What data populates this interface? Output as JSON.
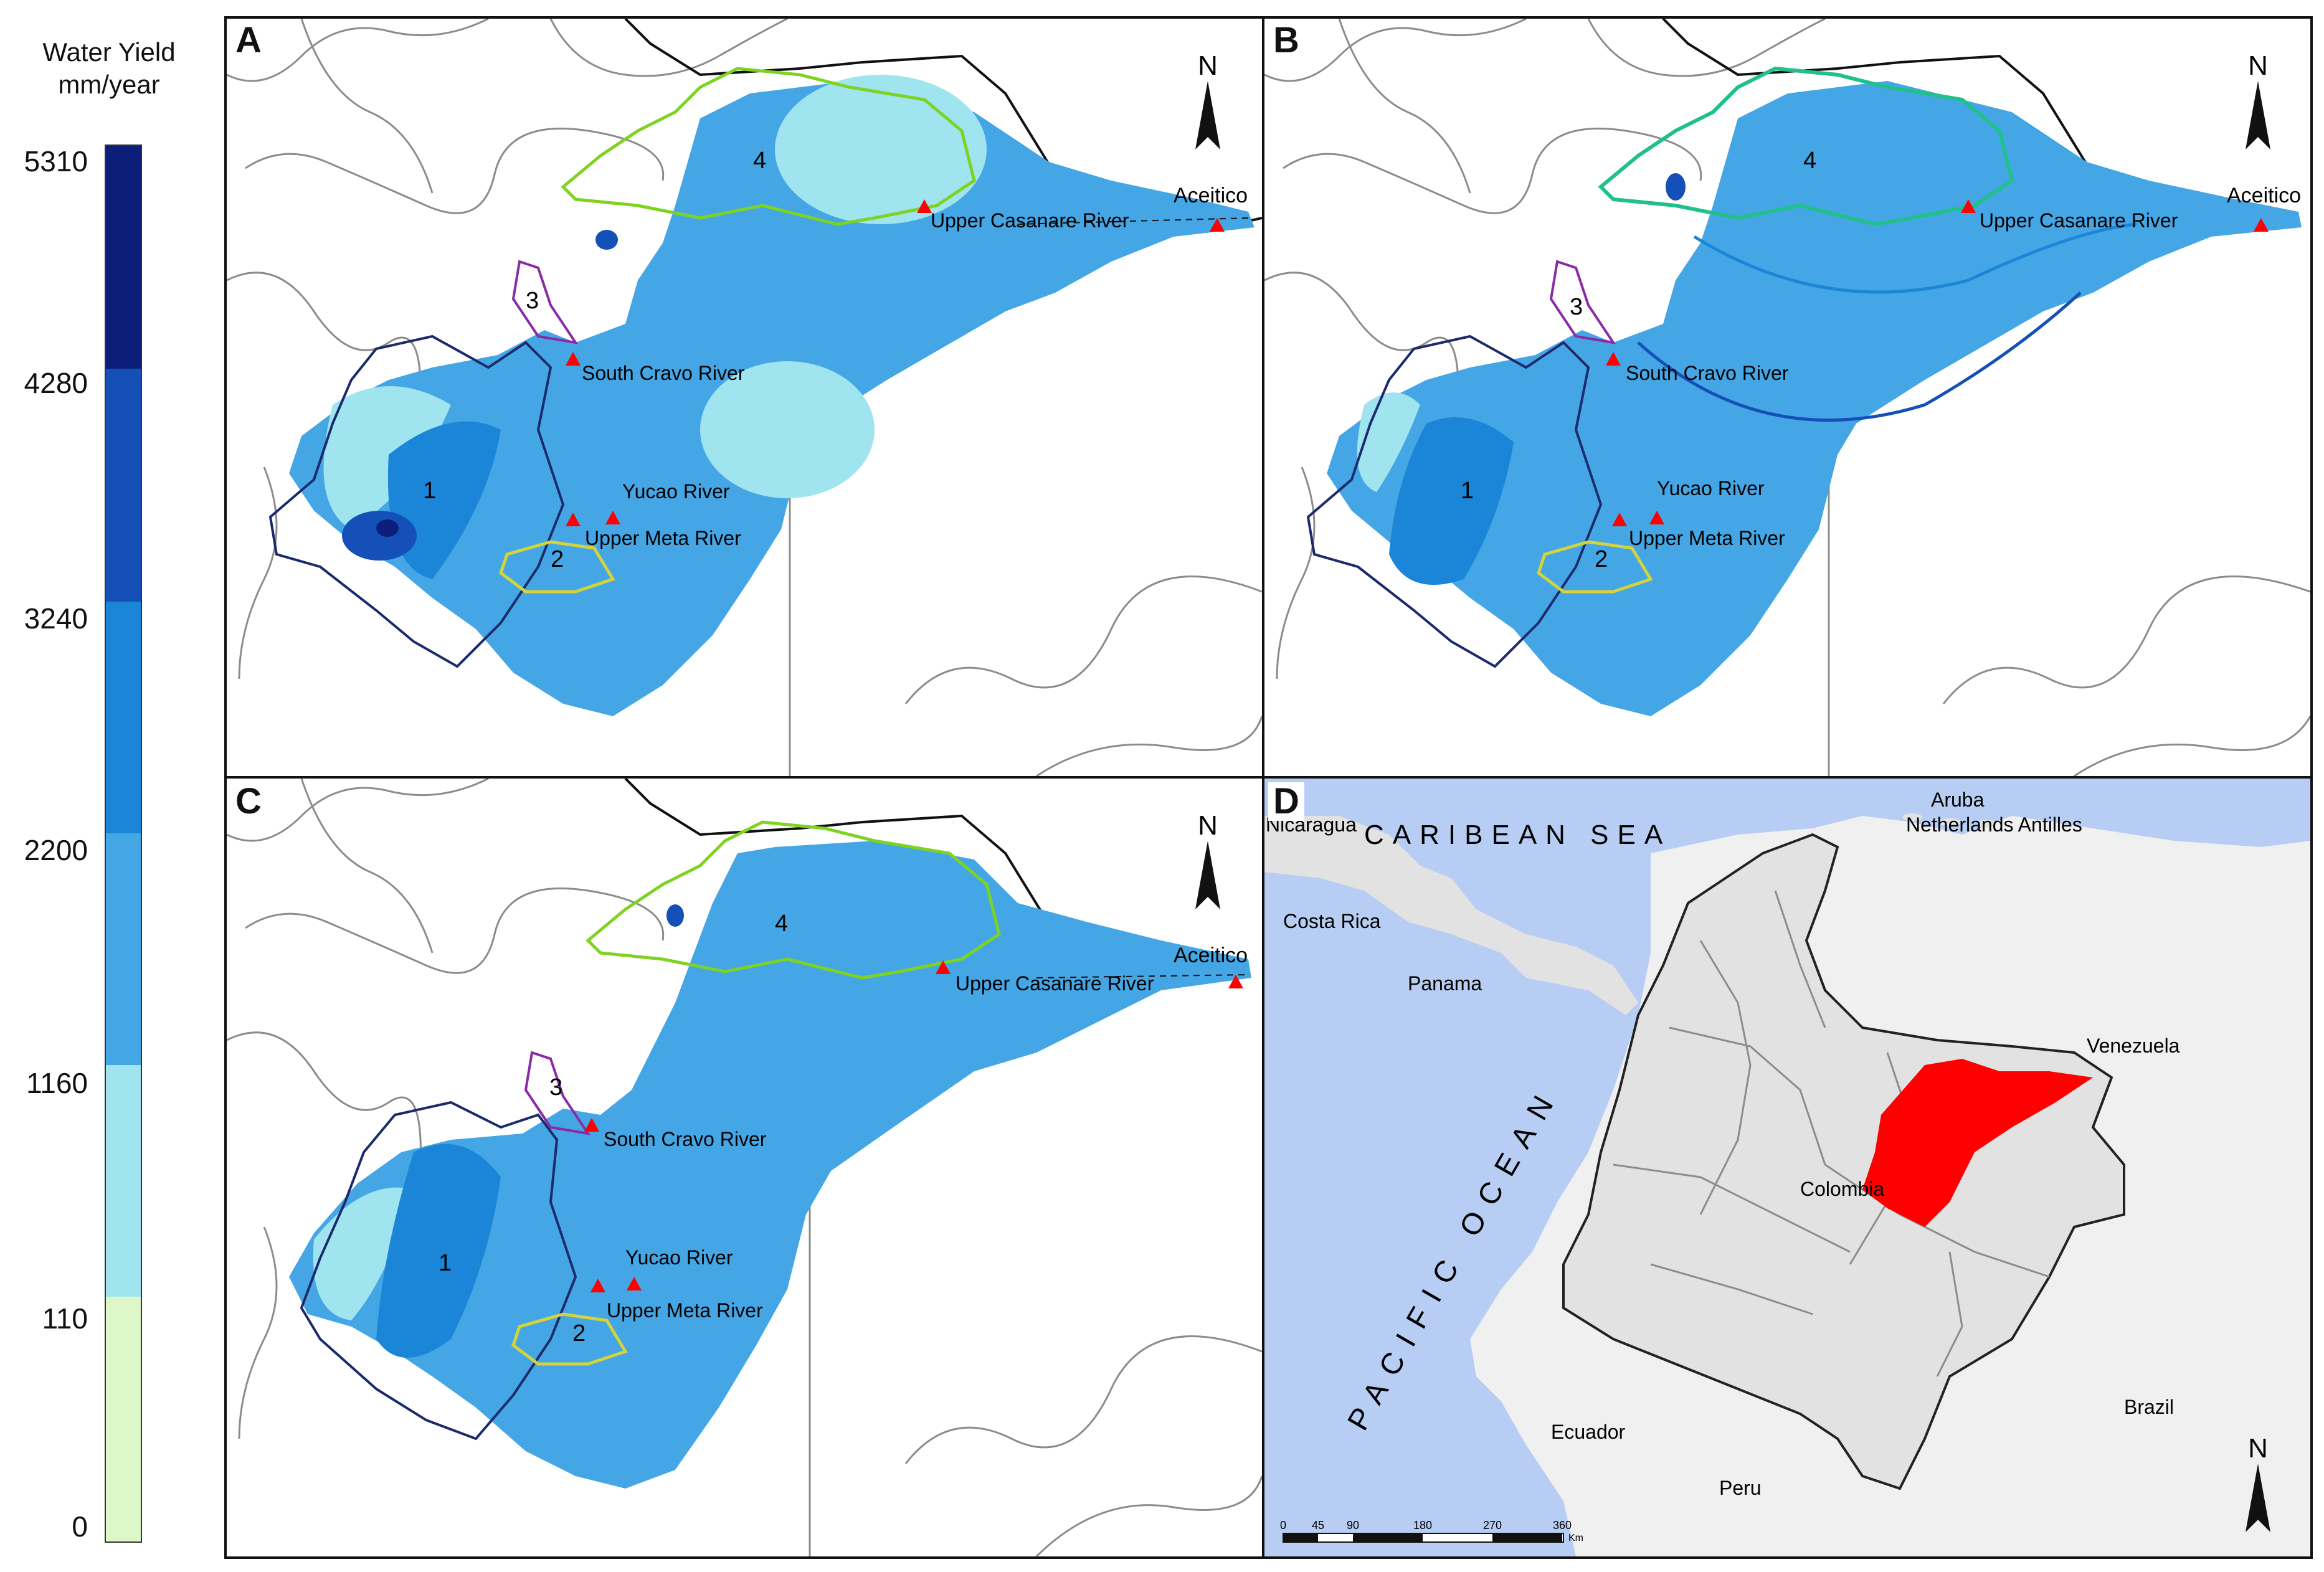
{
  "legend": {
    "title_line1": "Water Yield",
    "title_line2": "mm/year",
    "ticks": [
      "5310",
      "4280",
      "3240",
      "2200",
      "1160",
      "110",
      "0"
    ],
    "colors": [
      "#0b1f7a",
      "#1550b8",
      "#1b86d8",
      "#45a6e6",
      "#9fe4ef",
      "#def7c8"
    ]
  },
  "panels": [
    {
      "letter": "A"
    },
    {
      "letter": "B"
    },
    {
      "letter": "C"
    },
    {
      "letter": "D"
    }
  ],
  "labels": {
    "north": "N",
    "aceitico": "Aceitico",
    "upper_casanare": "Upper Casanare River",
    "south_cravo": "South Cravo River",
    "yucao": "Yucao River",
    "upper_meta": "Upper Meta River",
    "basin_1": "1",
    "basin_2": "2",
    "basin_3": "3",
    "basin_4": "4"
  },
  "map_d": {
    "caribbean": "CARIBEAN SEA",
    "pacific": "PACIFIC OCEAN",
    "countries": [
      "Nicaragua",
      "Costa Rica",
      "Panama",
      "Aruba",
      "Netherlands Antilles",
      "Venezuela",
      "Colombia",
      "Ecuador",
      "Peru",
      "Brazil"
    ],
    "scale_ticks": [
      "0",
      "45",
      "90",
      "180",
      "270",
      "360"
    ],
    "scale_unit": "Km"
  },
  "colors": {
    "basin1_outline": "#1a2a6c",
    "basin2_outline": "#d4d43a",
    "basin3_outline": "#8a2aa8",
    "basin4_outline": "#7ed321",
    "station_marker": "#ff0000",
    "study_area_red": "#ff0000",
    "ocean": "#b7cdf3",
    "land_grey": "#e2e2e2"
  }
}
